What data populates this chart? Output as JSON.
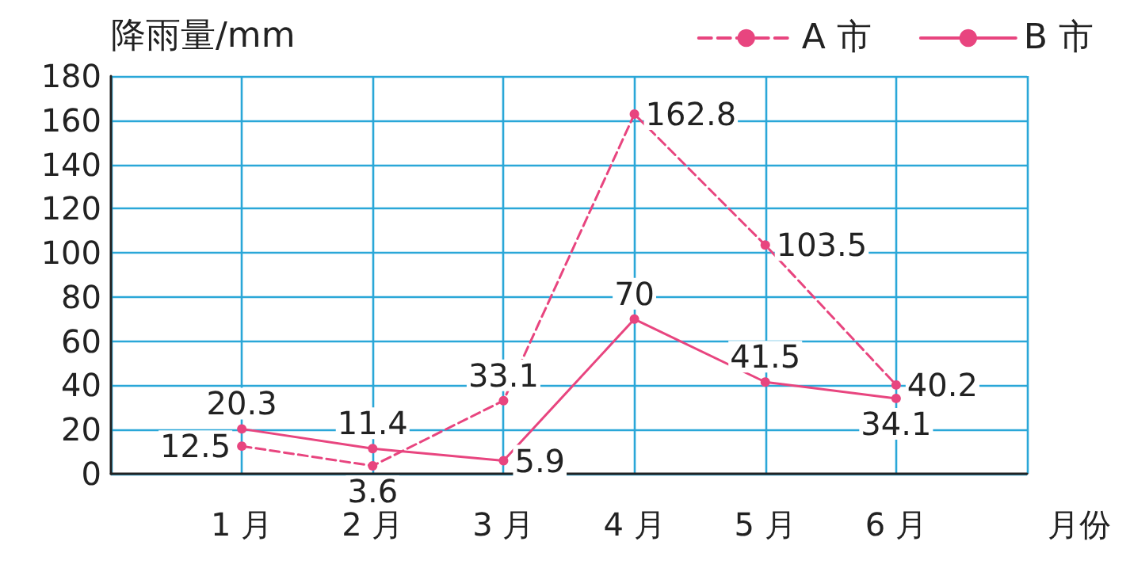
{
  "chart_data": {
    "type": "line",
    "ylabel": "降雨量/mm",
    "xlabel": "月份",
    "categories": [
      "1 月",
      "2 月",
      "3 月",
      "4 月",
      "5 月",
      "6 月"
    ],
    "series": [
      {
        "name": "A 市",
        "color": "#e8457f",
        "line_style": "dashed",
        "values": [
          12.5,
          3.6,
          33.1,
          162.8,
          103.5,
          40.2
        ]
      },
      {
        "name": "B 市",
        "color": "#e8457f",
        "line_style": "solid",
        "values": [
          20.3,
          11.4,
          5.9,
          70,
          41.5,
          34.1
        ]
      }
    ],
    "ylim": [
      0,
      180
    ],
    "yticks": [
      0,
      20,
      40,
      60,
      80,
      100,
      120,
      140,
      160,
      180
    ],
    "grid": true,
    "legend": "top right",
    "marker": "circle",
    "data_labels": true
  }
}
